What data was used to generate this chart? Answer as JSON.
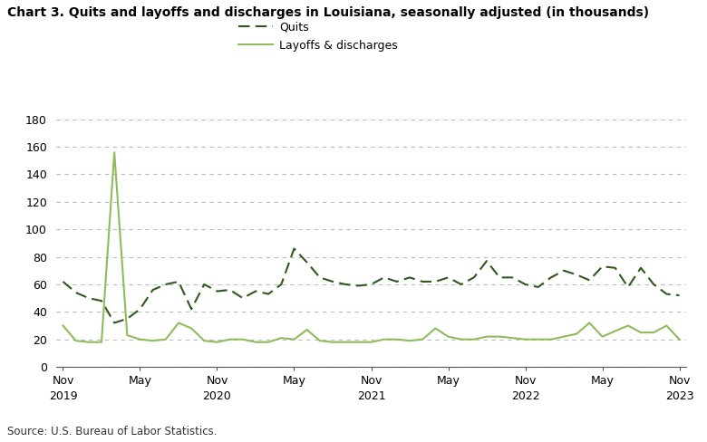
{
  "title": "Chart 3. Quits and layoffs and discharges in Louisiana, seasonally adjusted (in thousands)",
  "source": "Source: U.S. Bureau of Labor Statistics.",
  "quits_color": "#2d5a1b",
  "layoffs_color": "#8fbc5a",
  "background_color": "#ffffff",
  "ylim": [
    0,
    180
  ],
  "yticks": [
    0,
    20,
    40,
    60,
    80,
    100,
    120,
    140,
    160,
    180
  ],
  "legend_labels": [
    "Quits",
    "Layoffs & discharges"
  ],
  "x_tick_labels": [
    "Nov\n2019",
    "May",
    "Nov\n2020",
    "May",
    "Nov\n2021",
    "May",
    "Nov\n2022",
    "May",
    "Nov\n2023"
  ],
  "x_tick_positions": [
    0,
    6,
    12,
    18,
    24,
    30,
    36,
    42,
    48
  ],
  "quits": [
    62,
    54,
    50,
    48,
    32,
    35,
    42,
    56,
    60,
    62,
    42,
    60,
    55,
    56,
    50,
    55,
    53,
    60,
    86,
    76,
    65,
    62,
    60,
    59,
    60,
    65,
    62,
    65,
    62,
    62,
    65,
    60,
    65,
    77,
    65,
    65,
    60,
    58,
    65,
    70,
    67,
    63,
    73,
    72,
    58,
    72,
    60,
    53,
    52
  ],
  "layoffs": [
    30,
    19,
    18,
    18,
    156,
    23,
    20,
    19,
    20,
    32,
    28,
    19,
    18,
    20,
    20,
    18,
    18,
    21,
    20,
    27,
    19,
    18,
    18,
    18,
    18,
    20,
    20,
    19,
    20,
    28,
    22,
    20,
    20,
    22,
    22,
    21,
    20,
    20,
    20,
    22,
    24,
    32,
    22,
    26,
    30,
    25,
    25,
    30,
    20
  ]
}
